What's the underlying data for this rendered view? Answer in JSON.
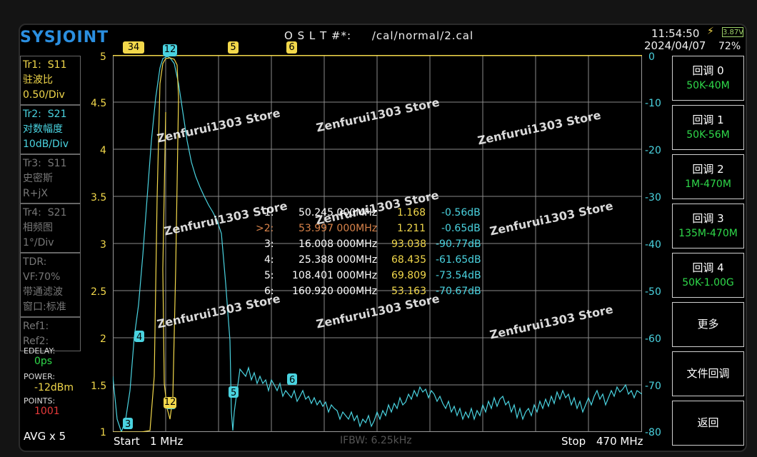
{
  "header": {
    "logo": "SYSJOINT",
    "cal_file": "O S L T #*:     /cal/normal/2.cal",
    "time": "11:54:50",
    "date": "2024/04/07",
    "battery_voltage": "3.87V",
    "battery_percent": "72%"
  },
  "traces": {
    "tr1": {
      "id": "Tr1:",
      "param": "S11",
      "format": "驻波比",
      "scale": "0.50/Div"
    },
    "tr2": {
      "id": "Tr2:",
      "param": "S21",
      "format": "对数幅度",
      "scale": "10dB/Div"
    },
    "tr3": {
      "id": "Tr3:",
      "param": "S11",
      "format": "史密斯",
      "scale": "R+jX"
    },
    "tr4": {
      "id": "Tr4:",
      "param": "S21",
      "format": "相频图",
      "scale": "1°/Div"
    }
  },
  "tdr": {
    "title": "TDR:",
    "vf": "VF:70%",
    "filter": "带通滤波",
    "window": "窗口:标准"
  },
  "refs": {
    "ref1": "Ref1:",
    "ref2": "Ref2:"
  },
  "settings": {
    "edelay_label": "EDELAY:",
    "edelay_value": "0ps",
    "power_label": "POWER:",
    "power_value": "-12dBm",
    "points_label": "POINTS:",
    "points_value": "1001",
    "avg": "AVG x 5"
  },
  "menu": [
    {
      "label": "回调 0",
      "sub": "50K-40M"
    },
    {
      "label": "回调 1",
      "sub": "50K-56M"
    },
    {
      "label": "回调 2",
      "sub": "1M-470M"
    },
    {
      "label": "回调 3",
      "sub": "135M-470M"
    },
    {
      "label": "回调 4",
      "sub": "50K-1.00G"
    },
    {
      "label": "更多"
    },
    {
      "label": "文件回调"
    },
    {
      "label": "返回"
    }
  ],
  "axes": {
    "left_ticks": [
      "5",
      "4.5",
      "4",
      "3.5",
      "3",
      "2.5",
      "2",
      "1.5",
      "1"
    ],
    "right_ticks": [
      "0",
      "-10",
      "-20",
      "-30",
      "-40",
      "-50",
      "-60",
      "-70",
      "-80"
    ]
  },
  "sweep": {
    "start_label": "Start",
    "start_value": "1 MHz",
    "stop_label": "Stop",
    "stop_value": "470 MHz",
    "ifbw": "IFBW: 6.25kHz"
  },
  "markers": [
    {
      "id": "1:",
      "freq": "50.245 000MHz",
      "swr": "1.168",
      "db": "-0.56dB",
      "active": false
    },
    {
      "id": ">2:",
      "freq": "53.997 000MHz",
      "swr": "1.211",
      "db": "-0.65dB",
      "active": true
    },
    {
      "id": "3:",
      "freq": "16.008 000MHz",
      "swr": "93.038",
      "db": "-90.77dB",
      "active": false
    },
    {
      "id": "4:",
      "freq": "25.388 000MHz",
      "swr": "68.435",
      "db": "-61.65dB",
      "active": false
    },
    {
      "id": "5:",
      "freq": "108.401 000MHz",
      "swr": "69.809",
      "db": "-73.54dB",
      "active": false
    },
    {
      "id": "6:",
      "freq": "160.920 000MHz",
      "swr": "53.163",
      "db": "-70.67dB",
      "active": false
    }
  ],
  "watermark": "Zenfurui1303 Store",
  "colors": {
    "tr1": "#f2d84b",
    "tr2": "#4ad3e0",
    "active_marker": "#d9834a",
    "menu_sub": "#2fd94a"
  }
}
